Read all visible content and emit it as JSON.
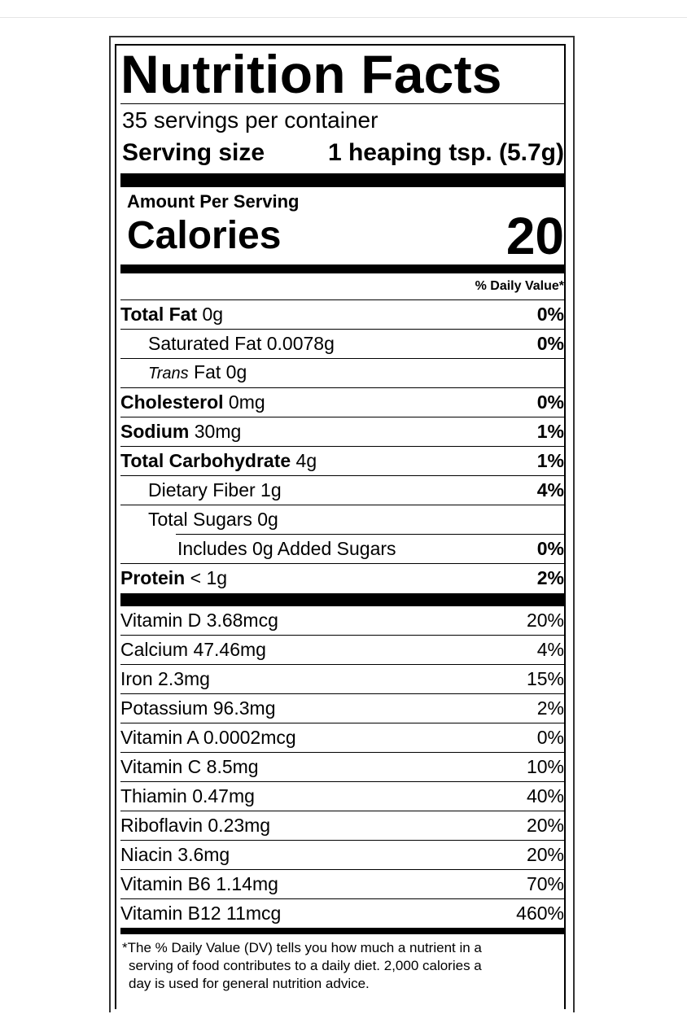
{
  "label": {
    "title": "Nutrition Facts",
    "servings": "35 servings per container",
    "serving_size_label": "Serving size",
    "serving_size_value": "1 heaping tsp. (5.7g)",
    "amount_per_serving": "Amount Per Serving",
    "calories_label": "Calories",
    "calories_value": "20",
    "daily_value_header": "% Daily Value*"
  },
  "nutrients": [
    {
      "name": "Total Fat",
      "amount": "0g",
      "dv": "0%"
    },
    {
      "name": "Saturated Fat",
      "amount": "0.0078g",
      "dv": "0%"
    },
    {
      "name_prefix": "Trans",
      "name": "Fat",
      "amount": "0g",
      "dv": ""
    },
    {
      "name": "Cholesterol",
      "amount": "0mg",
      "dv": "0%"
    },
    {
      "name": "Sodium",
      "amount": "30mg",
      "dv": "1%"
    },
    {
      "name": "Total Carbohydrate",
      "amount": "4g",
      "dv": "1%"
    },
    {
      "name": "Dietary Fiber",
      "amount": "1g",
      "dv": "4%"
    },
    {
      "name": "Total Sugars",
      "amount": "0g",
      "dv": ""
    },
    {
      "name": "Includes 0g Added Sugars",
      "amount": "",
      "dv": "0%"
    },
    {
      "name": "Protein",
      "amount": "< 1g",
      "dv": "2%"
    }
  ],
  "vitamins": [
    {
      "text": "Vitamin D 3.68mcg",
      "dv": "20%"
    },
    {
      "text": "Calcium 47.46mg",
      "dv": "4%"
    },
    {
      "text": "Iron 2.3mg",
      "dv": "15%"
    },
    {
      "text": "Potassium 96.3mg",
      "dv": "2%"
    },
    {
      "text": "Vitamin A 0.0002mcg",
      "dv": "0%"
    },
    {
      "text": "Vitamin C 8.5mg",
      "dv": "10%"
    },
    {
      "text": "Thiamin 0.47mg",
      "dv": "40%"
    },
    {
      "text": "Riboflavin 0.23mg",
      "dv": "20%"
    },
    {
      "text": "Niacin 3.6mg",
      "dv": "20%"
    },
    {
      "text": "Vitamin B6 1.14mg",
      "dv": "70%"
    },
    {
      "text": "Vitamin B12 11mcg",
      "dv": "460%"
    }
  ],
  "footnote": {
    "line1": "*The % Daily Value (DV) tells you how much a nutrient in a",
    "line2": "serving of food contributes to a daily diet. 2,000 calories a",
    "line3": "day is used for general nutrition advice."
  }
}
